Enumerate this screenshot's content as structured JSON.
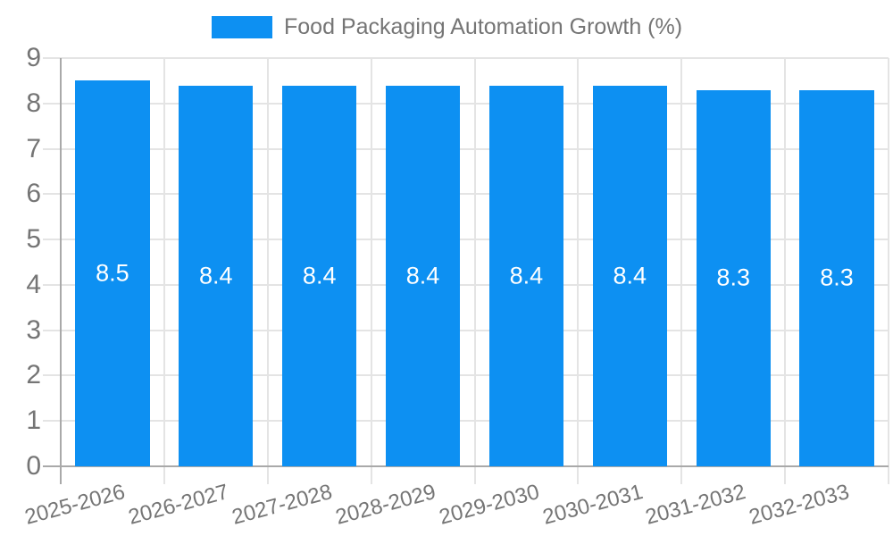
{
  "chart_data": {
    "type": "bar",
    "title": "Food Packaging Automation Growth (%)",
    "legend": [
      "Food Packaging Automation Growth (%)"
    ],
    "legend_position": "top",
    "categories": [
      "2025-2026",
      "2026-2027",
      "2027-2028",
      "2028-2029",
      "2029-2030",
      "2030-2031",
      "2031-2032",
      "2032-2033"
    ],
    "series": [
      {
        "name": "Food Packaging Automation Growth (%)",
        "values": [
          8.5,
          8.4,
          8.4,
          8.4,
          8.4,
          8.4,
          8.3,
          8.3
        ],
        "value_labels": [
          "8.5",
          "8.4",
          "8.4",
          "8.4",
          "8.4",
          "8.4",
          "8.3",
          "8.3"
        ]
      }
    ],
    "xlabel": "",
    "ylabel": "",
    "ylim": [
      0,
      9
    ],
    "ytick_step": 1,
    "yticks": [
      "0",
      "1",
      "2",
      "3",
      "4",
      "5",
      "6",
      "7",
      "8",
      "9"
    ],
    "grid": "on",
    "colors": {
      "bar": "#0d90f2",
      "value_label": "#ffffff",
      "axis_text": "#757575",
      "gridline": "#e4e4e4",
      "axis_line": "#a9a9a9",
      "background": "#ffffff"
    }
  }
}
